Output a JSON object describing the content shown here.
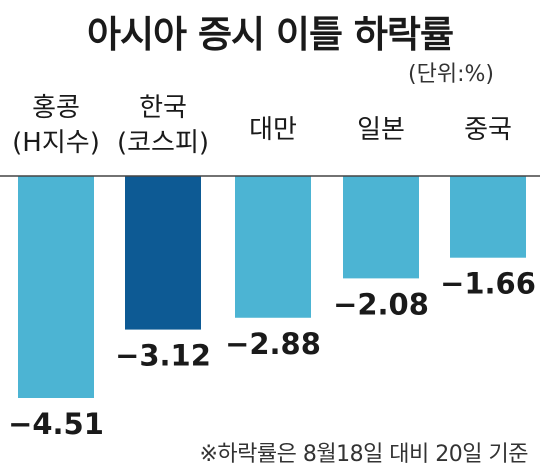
{
  "title": "아시아 증시 이틀 하락률",
  "unit": "(단위:%)",
  "footnote": "※하락률은 8월18일 대비 20일 기준",
  "colors": {
    "bar": "#4cb4d3",
    "highlight": "#0d5a94",
    "axis": "#444444"
  },
  "chart_data": {
    "type": "bar",
    "title": "아시아 증시 이틀 하락률",
    "unit": "%",
    "categories": [
      [
        "홍콩",
        "(H지수)"
      ],
      [
        "한국",
        "(코스피)"
      ],
      [
        "대만"
      ],
      [
        "일본"
      ],
      [
        "중국"
      ]
    ],
    "values": [
      -4.51,
      -3.12,
      -2.88,
      -2.08,
      -1.66
    ],
    "value_labels": [
      "−4.51",
      "−3.12",
      "−2.88",
      "−2.08",
      "−1.66"
    ],
    "highlight_index": 1,
    "ylim": [
      -4.51,
      0
    ],
    "grid": false,
    "legend": "none"
  }
}
